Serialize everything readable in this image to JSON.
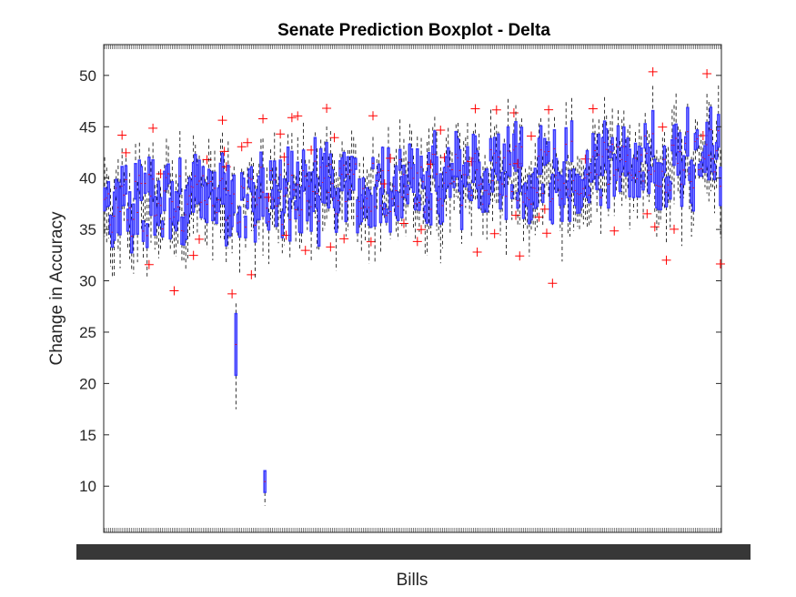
{
  "chart_data": {
    "type": "box",
    "title": "Senate Prediction Boxplot - Delta",
    "xlabel": "Bills",
    "ylabel": "Change in Accuracy",
    "ylim": [
      5.5,
      53
    ],
    "yticks": [
      10,
      15,
      20,
      25,
      30,
      35,
      40,
      45,
      50
    ],
    "x_category_count": 320,
    "x_tick_labels": "overlapping, illegible",
    "grid": false,
    "legend": "none",
    "colors": {
      "box": "#3b3bff",
      "median": "#ff0000",
      "whisker": "#000000",
      "outlier": "#ff0000",
      "axis": "#262626"
    },
    "summary": {
      "typical_median_range": [
        36,
        44
      ],
      "overall_min_whisker": 8,
      "overall_max": 50.5,
      "notable_low_boxes": [
        {
          "category_index": 68,
          "q1": 20.8,
          "q3": 26.8,
          "whisker_low": 17.5,
          "whisker_high": 27.8
        },
        {
          "category_index": 83,
          "q1": 9.4,
          "q3": 11.5,
          "whisker_low": 8.1,
          "whisker_high": 11.5
        }
      ]
    }
  }
}
